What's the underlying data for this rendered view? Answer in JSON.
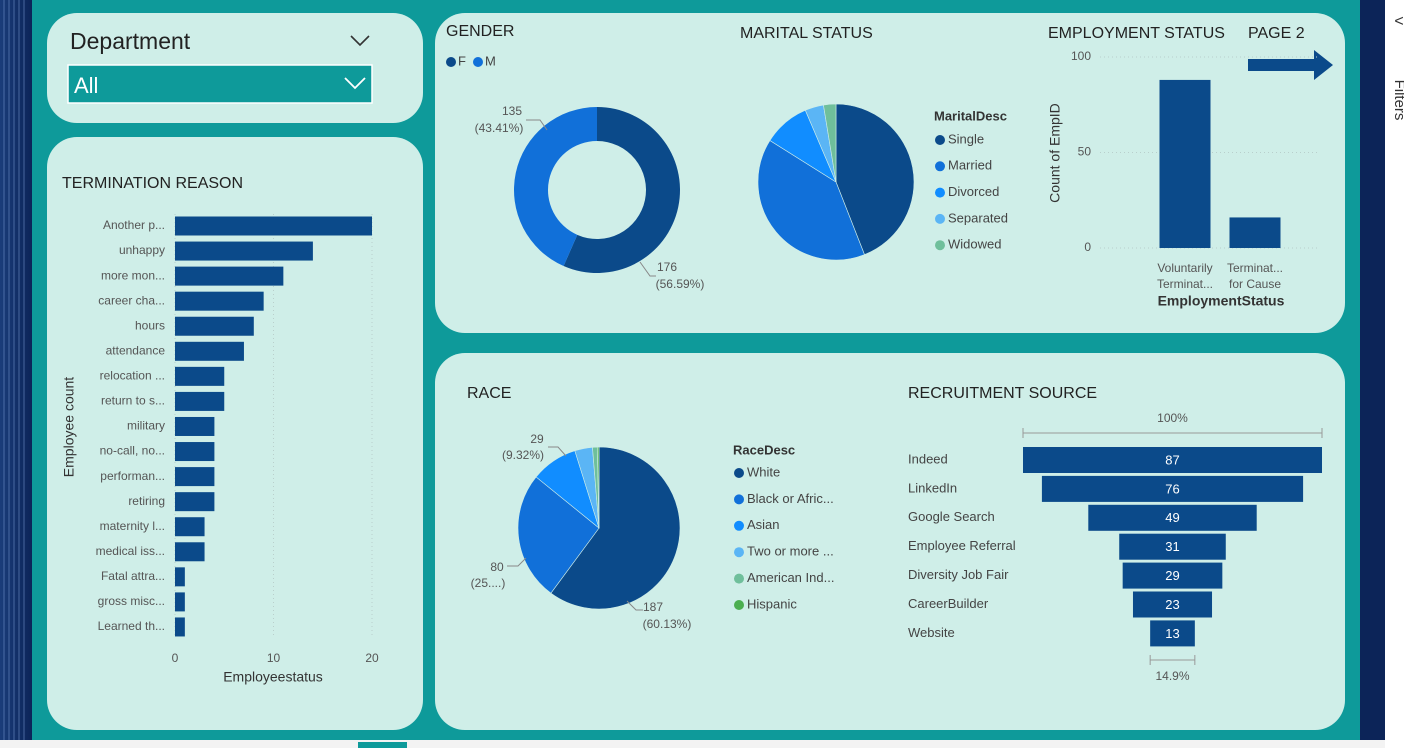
{
  "slicer": {
    "label": "Department",
    "value": "All"
  },
  "page_link": "PAGE 2",
  "side_panel": "Filters",
  "chart_data": [
    {
      "type": "bar",
      "orientation": "horizontal",
      "title": "TERMINATION REASON",
      "categories": [
        "Another p...",
        "unhappy",
        "more mon...",
        "career cha...",
        "hours",
        "attendance",
        "relocation ...",
        "return to s...",
        "military",
        "no-call, no...",
        "performan...",
        "retiring",
        "maternity l...",
        "medical iss...",
        "Fatal attra...",
        "gross misc...",
        "Learned th..."
      ],
      "values": [
        20,
        14,
        11,
        9,
        8,
        7,
        5,
        5,
        4,
        4,
        4,
        4,
        3,
        3,
        1,
        1,
        1
      ],
      "color": "#0b4a8a",
      "xlim": [
        0,
        20
      ],
      "xticks": [
        0,
        10,
        20
      ],
      "grid": true,
      "x_label": "Employeestatus",
      "y_label": "Employee count"
    },
    {
      "type": "donut",
      "title": "GENDER",
      "categories": [
        "F",
        "M"
      ],
      "values": [
        176,
        135
      ],
      "percent_labels": [
        "(56.59%)",
        "(43.41%)"
      ],
      "colors": [
        "#0b4a8a",
        "#1170d9"
      ]
    },
    {
      "type": "pie",
      "title": "MARITAL STATUS",
      "legend_title": "MaritalDesc",
      "categories": [
        "Single",
        "Married",
        "Divorced",
        "Separated",
        "Widowed"
      ],
      "values": [
        137,
        124,
        30,
        12,
        8
      ],
      "colors": [
        "#0b4a8a",
        "#1170d9",
        "#118dff",
        "#5bb5f5",
        "#6fbf9b"
      ]
    },
    {
      "type": "bar",
      "orientation": "vertical",
      "title": "EMPLOYMENT STATUS",
      "categories": [
        "Voluntarily Terminat...",
        "Terminat... for Cause"
      ],
      "values": [
        88,
        16
      ],
      "color": "#0b4a8a",
      "ylim": [
        0,
        100
      ],
      "yticks": [
        0,
        50,
        100
      ],
      "grid": true,
      "x_label": "EmploymentStatus",
      "y_label": "Count of EmpID"
    },
    {
      "type": "pie",
      "title": "RACE",
      "legend_title": "RaceDesc",
      "categories": [
        "White",
        "Black or Afric...",
        "Asian",
        "Two or more ...",
        "American Ind...",
        "Hispanic"
      ],
      "values": [
        187,
        80,
        29,
        11,
        3,
        1
      ],
      "percent_labels": [
        "(60.13%)",
        "(25....)",
        "(9.32%)",
        null,
        null,
        null
      ],
      "colors": [
        "#0b4a8a",
        "#1170d9",
        "#118dff",
        "#5bb5f5",
        "#6fbf9b",
        "#4caf50"
      ]
    },
    {
      "type": "funnel",
      "title": "RECRUITMENT SOURCE",
      "categories": [
        "Indeed",
        "LinkedIn",
        "Google Search",
        "Employee Referral",
        "Diversity Job Fair",
        "CareerBuilder",
        "Website"
      ],
      "values": [
        87,
        76,
        49,
        31,
        29,
        23,
        13
      ],
      "color": "#0b4a8a",
      "top_label": "100%",
      "bottom_label": "14.9%"
    }
  ]
}
